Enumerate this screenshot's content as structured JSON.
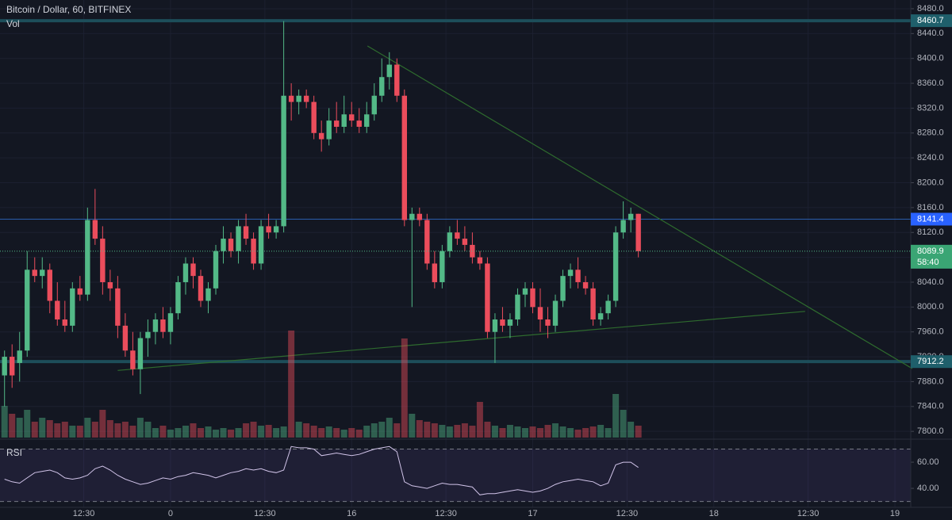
{
  "chart_data": [
    {
      "type": "candlestick",
      "title": "Bitcoin / Dollar, 60, BITFINEX",
      "x": [
        -22,
        -21,
        -20,
        -19,
        -18,
        -17,
        -16,
        -15,
        -14,
        -13,
        -12,
        -11,
        -10,
        -9,
        -8,
        -7,
        -6,
        -5,
        -4,
        -3,
        -2,
        -1,
        0,
        1,
        2,
        3,
        4,
        5,
        6,
        7,
        8,
        9,
        10,
        11,
        12,
        13,
        14,
        15,
        16,
        17,
        18,
        19,
        20,
        21,
        22,
        23,
        24,
        25,
        26,
        27,
        28,
        29,
        30,
        31,
        32,
        33,
        34,
        35,
        36,
        37,
        38,
        39,
        40,
        41,
        42,
        43,
        44,
        45,
        46,
        47,
        48,
        49,
        50,
        51,
        52,
        53,
        54,
        55,
        56,
        57,
        58,
        59,
        60,
        61,
        62
      ],
      "open": [
        7890,
        7920,
        7910,
        7930,
        8060,
        8050,
        8060,
        8010,
        7980,
        7970,
        8030,
        8020,
        8140,
        8110,
        8040,
        8030,
        7970,
        7930,
        7900,
        7950,
        7960,
        7980,
        7960,
        7990,
        8040,
        8070,
        8050,
        8010,
        8030,
        8090,
        8110,
        8090,
        8130,
        8110,
        8070,
        8130,
        8120,
        8130,
        8340,
        8330,
        8340,
        8330,
        8280,
        8270,
        8300,
        8290,
        8310,
        8300,
        8290,
        8310,
        8340,
        8370,
        8390,
        8340,
        8140,
        8150,
        8140,
        8070,
        8040,
        8090,
        8120,
        8110,
        8100,
        8080,
        8070,
        7960,
        7980,
        7970,
        7980,
        8020,
        8030,
        8000,
        7980,
        7970,
        8010,
        8050,
        8060,
        8040,
        8030,
        7980,
        7990,
        8010,
        8120,
        8140,
        8150
      ],
      "high": [
        7930,
        7940,
        7960,
        8090,
        8080,
        8080,
        8070,
        8040,
        8010,
        8040,
        8050,
        8160,
        8190,
        8130,
        8060,
        8050,
        7990,
        7960,
        7960,
        7980,
        7990,
        8000,
        8000,
        8050,
        8080,
        8080,
        8060,
        8040,
        8100,
        8130,
        8120,
        8140,
        8150,
        8120,
        8140,
        8150,
        8140,
        8460,
        8360,
        8350,
        8350,
        8340,
        8300,
        8320,
        8330,
        8340,
        8330,
        8320,
        8330,
        8360,
        8400,
        8410,
        8400,
        8350,
        8160,
        8160,
        8150,
        8090,
        8100,
        8130,
        8140,
        8130,
        8120,
        8090,
        8080,
        7990,
        8000,
        7990,
        8030,
        8040,
        8040,
        8030,
        8000,
        8020,
        8060,
        8070,
        8080,
        8050,
        8040,
        8000,
        8020,
        8130,
        8170,
        8160,
        8150
      ],
      "low": [
        7840,
        7870,
        7880,
        7920,
        8040,
        8030,
        7990,
        7970,
        7960,
        7960,
        8010,
        8010,
        8100,
        8020,
        8010,
        7950,
        7920,
        7890,
        7860,
        7920,
        7940,
        7950,
        7940,
        7980,
        8020,
        8030,
        8000,
        7990,
        8020,
        8070,
        8080,
        8070,
        8100,
        8060,
        8060,
        8110,
        8110,
        8120,
        8300,
        8310,
        8320,
        8270,
        8250,
        8260,
        8280,
        8280,
        8290,
        8280,
        8280,
        8300,
        8330,
        8350,
        8330,
        8130,
        8000,
        8130,
        8060,
        8030,
        8030,
        8080,
        8100,
        8090,
        8070,
        8060,
        7950,
        7910,
        7960,
        7950,
        7970,
        8000,
        7990,
        7960,
        7950,
        7960,
        8000,
        8030,
        8030,
        8020,
        7970,
        7970,
        7980,
        8000,
        8110,
        8120,
        8080
      ],
      "close": [
        7920,
        7890,
        7930,
        8060,
        8050,
        8060,
        8010,
        7980,
        7970,
        8030,
        8020,
        8140,
        8110,
        8040,
        8030,
        7970,
        7930,
        7900,
        7950,
        7960,
        7980,
        7960,
        7990,
        8040,
        8070,
        8050,
        8010,
        8030,
        8090,
        8110,
        8090,
        8130,
        8110,
        8070,
        8130,
        8120,
        8130,
        8340,
        8330,
        8340,
        8330,
        8280,
        8270,
        8300,
        8290,
        8310,
        8300,
        8290,
        8310,
        8340,
        8370,
        8390,
        8340,
        8140,
        8150,
        8140,
        8070,
        8040,
        8090,
        8120,
        8110,
        8100,
        8080,
        8070,
        7960,
        7980,
        7970,
        7980,
        8020,
        8030,
        8000,
        7980,
        7970,
        8010,
        8050,
        8060,
        8040,
        8030,
        7980,
        7990,
        8010,
        8120,
        8140,
        8150,
        8089.9
      ],
      "up_color": "#53b987",
      "down_color": "#eb4d5c",
      "xlim": [
        -22.6,
        98.1
      ],
      "xticks": [
        {
          "value": -11.5,
          "label": "12:30"
        },
        0,
        {
          "value": 12.5,
          "label": "12:30"
        },
        {
          "value": 24,
          "label": "16"
        },
        {
          "value": 36.5,
          "label": "12:30"
        },
        {
          "value": 48,
          "label": "17"
        },
        {
          "value": 60.5,
          "label": "12:30"
        },
        {
          "value": 72,
          "label": "18"
        },
        {
          "value": 84.5,
          "label": "12:30"
        },
        {
          "value": 96,
          "label": "19"
        }
      ],
      "ylim": [
        7790,
        8494
      ],
      "yticks": [
        {
          "value": 7800,
          "label": "7800.0"
        },
        {
          "value": 7840,
          "label": "7840.0"
        },
        {
          "value": 7880,
          "label": "7880.0"
        },
        {
          "value": 7920,
          "label": "7920.0"
        },
        {
          "value": 7960,
          "label": "7960.0"
        },
        {
          "value": 8000,
          "label": "8000.0"
        },
        {
          "value": 8040,
          "label": "8040.0"
        },
        {
          "value": 8080,
          "label": "8080.0"
        },
        {
          "value": 8120,
          "label": "8120.0"
        },
        {
          "value": 8160,
          "label": "8160.0"
        },
        {
          "value": 8200,
          "label": "8200.0"
        },
        {
          "value": 8240,
          "label": "8240.0"
        },
        {
          "value": 8280,
          "label": "8280.0"
        },
        {
          "value": 8320,
          "label": "8320.0"
        },
        {
          "value": 8360,
          "label": "8360.0"
        },
        {
          "value": 8400,
          "label": "8400.0"
        },
        {
          "value": 8440,
          "label": "8440.0"
        },
        {
          "value": 8480,
          "label": "8480.0"
        }
      ],
      "grid": true,
      "price_lines": [
        {
          "value": 8460.7,
          "color": "#1d4e5a",
          "width": 4
        },
        {
          "value": 8141.4,
          "color": "#2a5dab",
          "width": 1
        },
        {
          "value": 7912.2,
          "color": "#1d4e5a",
          "width": 4
        }
      ],
      "countdown": "58:40",
      "trendlines": [
        {
          "x": [
            26.1,
            98.3
          ],
          "y": [
            8420,
            7901
          ],
          "color": "#2e6b2e"
        },
        {
          "x": [
            -7,
            84.1
          ],
          "y": [
            7898,
            7993
          ],
          "color": "#2e6b2e"
        }
      ]
    },
    {
      "type": "volume",
      "title": "Vol",
      "x": [
        -22,
        -21,
        -20,
        -19,
        -18,
        -17,
        -16,
        -15,
        -14,
        -13,
        -12,
        -11,
        -10,
        -9,
        -8,
        -7,
        -6,
        -5,
        -4,
        -3,
        -2,
        -1,
        0,
        1,
        2,
        3,
        4,
        5,
        6,
        7,
        8,
        9,
        10,
        11,
        12,
        13,
        14,
        15,
        16,
        17,
        18,
        19,
        20,
        21,
        22,
        23,
        24,
        25,
        26,
        27,
        28,
        29,
        30,
        31,
        32,
        33,
        34,
        35,
        36,
        37,
        38,
        39,
        40,
        41,
        42,
        43,
        44,
        45,
        46,
        47,
        48,
        49,
        50,
        51,
        52,
        53,
        54,
        55,
        56,
        57,
        58,
        59,
        60,
        61,
        62
      ],
      "values": [
        40,
        30,
        25,
        35,
        20,
        25,
        22,
        18,
        20,
        15,
        15,
        25,
        20,
        35,
        22,
        18,
        20,
        15,
        25,
        20,
        12,
        15,
        10,
        12,
        15,
        18,
        12,
        14,
        10,
        12,
        10,
        12,
        18,
        20,
        15,
        16,
        12,
        14,
        135,
        20,
        18,
        15,
        12,
        14,
        12,
        10,
        12,
        10,
        15,
        18,
        20,
        25,
        18,
        125,
        30,
        22,
        20,
        18,
        16,
        14,
        16,
        18,
        15,
        45,
        20,
        15,
        12,
        16,
        14,
        12,
        14,
        12,
        16,
        18,
        14,
        12,
        10,
        12,
        14,
        16,
        12,
        55,
        35,
        20,
        15
      ],
      "xlim": [
        -22.6,
        98.1
      ],
      "ylim": [
        0,
        150
      ]
    },
    {
      "type": "line",
      "title": "RSI",
      "x": [
        -22,
        -21,
        -20,
        -19,
        -18,
        -17,
        -16,
        -15,
        -14,
        -13,
        -12,
        -11,
        -10,
        -9,
        -8,
        -7,
        -6,
        -5,
        -4,
        -3,
        -2,
        -1,
        0,
        1,
        2,
        3,
        4,
        5,
        6,
        7,
        8,
        9,
        10,
        11,
        12,
        13,
        14,
        15,
        16,
        17,
        18,
        19,
        20,
        21,
        22,
        23,
        24,
        25,
        26,
        27,
        28,
        29,
        30,
        31,
        32,
        33,
        34,
        35,
        36,
        37,
        38,
        39,
        40,
        41,
        42,
        43,
        44,
        45,
        46,
        47,
        48,
        49,
        50,
        51,
        52,
        53,
        54,
        55,
        56,
        57,
        58,
        59,
        60,
        61,
        62
      ],
      "values": [
        47,
        45,
        44,
        48,
        52,
        53,
        54,
        52,
        48,
        47,
        48,
        50,
        55,
        57,
        54,
        50,
        47,
        45,
        43,
        44,
        46,
        48,
        47,
        49,
        50,
        52,
        51,
        50,
        48,
        50,
        52,
        53,
        55,
        54,
        55,
        53,
        52,
        54,
        72,
        71,
        71,
        70,
        65,
        66,
        67,
        66,
        65,
        66,
        68,
        70,
        71,
        72,
        68,
        45,
        42,
        41,
        40,
        42,
        44,
        43,
        43,
        42,
        41,
        35,
        36,
        36,
        37,
        38,
        39,
        38,
        37,
        38,
        40,
        43,
        45,
        46,
        47,
        46,
        45,
        42,
        44,
        58,
        60,
        60,
        56
      ],
      "color": "#d1c4e9",
      "xlim": [
        -22.6,
        98.1
      ],
      "ylim": [
        25.5,
        76.4
      ],
      "yticks": [
        {
          "value": 40,
          "label": "40.00"
        },
        {
          "value": 60,
          "label": "60.00"
        }
      ],
      "bands": [
        30,
        70
      ]
    }
  ]
}
